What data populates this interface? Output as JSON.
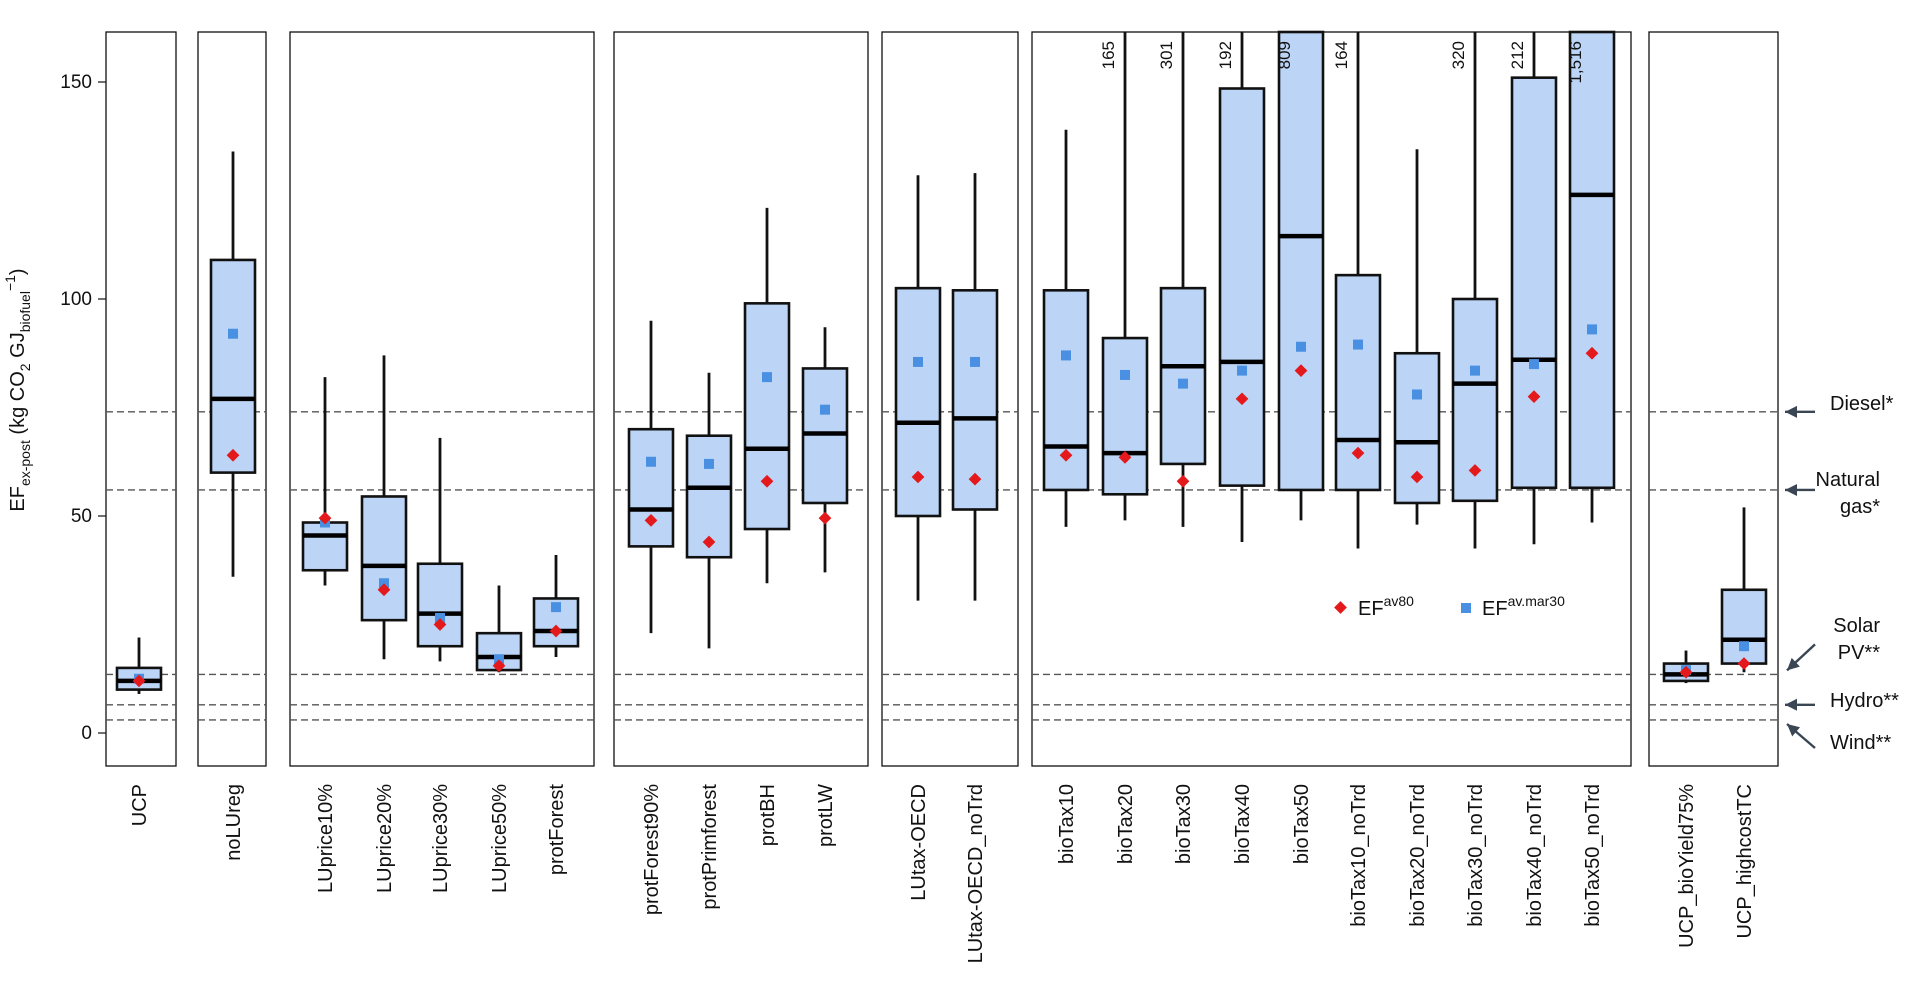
{
  "chart_data": {
    "type": "box",
    "ylabel": {
      "base": "EF",
      "base_sub": "ex-post",
      "unit_open": " (kg CO",
      "unit_co2_sub": "2",
      "unit_gj": " GJ",
      "unit_gj_sub": "biofuel",
      "unit_close_sup": "−1",
      "unit_close": ")"
    },
    "ylim": [
      -8,
      162
    ],
    "yticks": [
      0,
      50,
      100,
      150
    ],
    "colors": {
      "box_fill": "#bcd5f7",
      "median": "#000000",
      "ef_av80": "#e3191c",
      "ef_av_mar30": "#4a90e2",
      "refline": "#555555"
    },
    "panels": [
      {
        "scenarios": [
          {
            "name": "UCP",
            "whisker_low": 9,
            "q1": 10,
            "median": 12,
            "q3": 15,
            "whisker_high": 22,
            "ef_av80": 12,
            "ef_av_mar30": 12.5
          }
        ]
      },
      {
        "scenarios": [
          {
            "name": "noLUreg",
            "whisker_low": 36,
            "q1": 60,
            "median": 77,
            "q3": 109,
            "whisker_high": 134,
            "ef_av80": 64,
            "ef_av_mar30": 92
          }
        ]
      },
      {
        "scenarios": [
          {
            "name": "LUprice10%",
            "whisker_low": 34,
            "q1": 37.5,
            "median": 45.5,
            "q3": 48.5,
            "whisker_high": 82,
            "ef_av80": 49.5,
            "ef_av_mar30": 48.5
          },
          {
            "name": "LUprice20%",
            "whisker_low": 17,
            "q1": 26,
            "median": 38.5,
            "q3": 54.5,
            "whisker_high": 87,
            "ef_av80": 33,
            "ef_av_mar30": 34.5
          },
          {
            "name": "LUprice30%",
            "whisker_low": 16.5,
            "q1": 20,
            "median": 27.5,
            "q3": 39,
            "whisker_high": 68,
            "ef_av80": 25,
            "ef_av_mar30": 26.5
          },
          {
            "name": "LUprice50%",
            "whisker_low": 14,
            "q1": 14.5,
            "median": 17.5,
            "q3": 23,
            "whisker_high": 34,
            "ef_av80": 15.5,
            "ef_av_mar30": 17
          },
          {
            "name": "protForest",
            "whisker_low": 17.5,
            "q1": 20,
            "median": 23.5,
            "q3": 31,
            "whisker_high": 41,
            "ef_av80": 23.5,
            "ef_av_mar30": 29
          }
        ]
      },
      {
        "scenarios": [
          {
            "name": "protForest90%",
            "whisker_low": 23,
            "q1": 43,
            "median": 51.5,
            "q3": 70,
            "whisker_high": 95,
            "ef_av80": 49,
            "ef_av_mar30": 62.5
          },
          {
            "name": "protPrimforest",
            "whisker_low": 19.5,
            "q1": 40.5,
            "median": 56.5,
            "q3": 68.5,
            "whisker_high": 83,
            "ef_av80": 44,
            "ef_av_mar30": 62
          },
          {
            "name": "protBH",
            "whisker_low": 34.5,
            "q1": 47,
            "median": 65.5,
            "q3": 99,
            "whisker_high": 121,
            "ef_av80": 58,
            "ef_av_mar30": 82
          },
          {
            "name": "protLW",
            "whisker_low": 37,
            "q1": 53,
            "median": 69,
            "q3": 84,
            "whisker_high": 93.5,
            "ef_av80": 49.5,
            "ef_av_mar30": 74.5
          }
        ]
      },
      {
        "scenarios": [
          {
            "name": "LUtax-OECD",
            "whisker_low": 30.5,
            "q1": 50,
            "median": 71.5,
            "q3": 102.5,
            "whisker_high": 128.5,
            "ef_av80": 59,
            "ef_av_mar30": 85.5
          },
          {
            "name": "LUtax-OECD_noTrd",
            "whisker_low": 30.5,
            "q1": 51.5,
            "median": 72.5,
            "q3": 102,
            "whisker_high": 129,
            "ef_av80": 58.5,
            "ef_av_mar30": 85.5
          }
        ]
      },
      {
        "scenarios": [
          {
            "name": "bioTax10",
            "whisker_low": 47.5,
            "q1": 56,
            "median": 66,
            "q3": 102,
            "whisker_high": 139,
            "ef_av80": 64,
            "ef_av_mar30": 87
          },
          {
            "name": "bioTax20",
            "whisker_low": 49,
            "q1": 55,
            "median": 64.5,
            "q3": 91,
            "whisker_high": 165,
            "whisker_label": "165",
            "ef_av80": 63.5,
            "ef_av_mar30": 82.5
          },
          {
            "name": "bioTax30",
            "whisker_low": 47.5,
            "q1": 62,
            "median": 84.5,
            "q3": 102.5,
            "whisker_high": 301,
            "whisker_label": "301",
            "ef_av80": 58,
            "ef_av_mar30": 80.5
          },
          {
            "name": "bioTax40",
            "whisker_low": 44,
            "q1": 57,
            "median": 85.5,
            "q3": 148.5,
            "whisker_high": 192,
            "whisker_label": "192",
            "ef_av80": 77,
            "ef_av_mar30": 83.5
          },
          {
            "name": "bioTax50",
            "whisker_low": 49,
            "q1": 56,
            "median": 114.5,
            "q3": 809,
            "whisker_high": 809,
            "whisker_label": "809",
            "ef_av80": 83.5,
            "ef_av_mar30": 89
          },
          {
            "name": "bioTax10_noTrd",
            "whisker_low": 42.5,
            "q1": 56,
            "median": 67.5,
            "q3": 105.5,
            "whisker_high": 164,
            "whisker_label": "164",
            "ef_av80": 64.5,
            "ef_av_mar30": 89.5
          },
          {
            "name": "bioTax20_noTrd",
            "whisker_low": 48,
            "q1": 53,
            "median": 67,
            "q3": 87.5,
            "whisker_high": 134.5,
            "ef_av80": 59,
            "ef_av_mar30": 78
          },
          {
            "name": "bioTax30_noTrd",
            "whisker_low": 42.5,
            "q1": 53.5,
            "median": 80.5,
            "q3": 100,
            "whisker_high": 320,
            "whisker_label": "320",
            "ef_av80": 60.5,
            "ef_av_mar30": 83.5
          },
          {
            "name": "bioTax40_noTrd",
            "whisker_low": 43.5,
            "q1": 56.5,
            "median": 86,
            "q3": 151,
            "whisker_high": 212,
            "whisker_label": "212",
            "ef_av80": 77.5,
            "ef_av_mar30": 85
          },
          {
            "name": "bioTax50_noTrd",
            "whisker_low": 48.5,
            "q1": 56.5,
            "median": 124,
            "q3": 1516,
            "whisker_high": 1516,
            "whisker_label": "1,516",
            "ef_av80": 87.5,
            "ef_av_mar30": 93
          }
        ]
      },
      {
        "scenarios": [
          {
            "name": "UCP_bioYield75%",
            "whisker_low": 11.5,
            "q1": 12,
            "median": 13.5,
            "q3": 16,
            "whisker_high": 19,
            "ef_av80": 14,
            "ef_av_mar30": 14.5
          },
          {
            "name": "UCP_highcostTC",
            "whisker_low": 14,
            "q1": 16,
            "median": 21.5,
            "q3": 33,
            "whisker_high": 52,
            "ef_av80": 16,
            "ef_av_mar30": 20
          }
        ]
      }
    ],
    "reference_lines": [
      {
        "name": "Diesel*",
        "lines": [
          "Diesel*"
        ],
        "value": 74
      },
      {
        "name": "Natural gas*",
        "lines": [
          "Natural",
          "gas*"
        ],
        "value": 56
      },
      {
        "name": "Solar PV**",
        "lines": [
          "Solar",
          "PV**"
        ],
        "value": 13.5
      },
      {
        "name": "Hydro**",
        "lines": [
          "Hydro**"
        ],
        "value": 6.5
      },
      {
        "name": "Wind**",
        "lines": [
          "Wind**"
        ],
        "value": 3
      }
    ],
    "legend": {
      "placement": "inside bioTax panel, lower-middle",
      "ef_av80": {
        "base": "EF",
        "sup": "av80"
      },
      "ef_av_mar30": {
        "base": "EF",
        "sup": "av.mar30"
      }
    }
  }
}
